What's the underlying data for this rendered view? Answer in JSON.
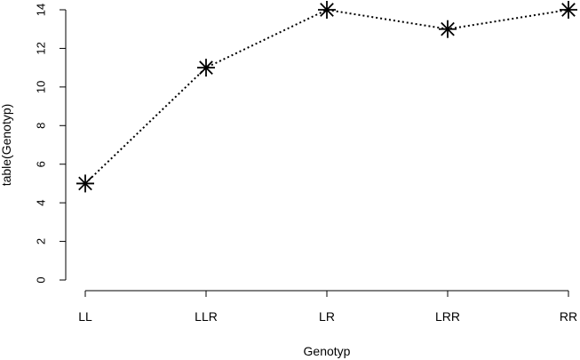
{
  "chart_data": {
    "type": "line",
    "title": "",
    "xlabel": "Genotyp",
    "ylabel": "table(Genotyp)",
    "categories": [
      "LL",
      "LLR",
      "LR",
      "LRR",
      "RR"
    ],
    "values": [
      5,
      11,
      14,
      13,
      14
    ],
    "ylim": [
      0,
      14
    ],
    "yticks": [
      0,
      2,
      4,
      6,
      8,
      10,
      12,
      14
    ],
    "line_style": "dotted",
    "marker": "asterisk",
    "grid": false,
    "colors": {
      "line": "#000000",
      "marker": "#000000",
      "axis": "#000000",
      "background": "#ffffff"
    }
  }
}
